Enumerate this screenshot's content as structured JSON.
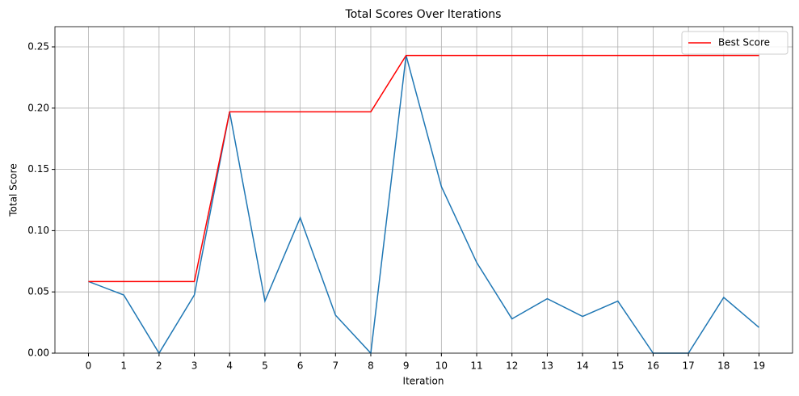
{
  "chart_data": {
    "type": "line",
    "title": "Total Scores Over Iterations",
    "x_label": "Iteration",
    "y_label": "Total Score",
    "x": [
      0,
      1,
      2,
      3,
      4,
      5,
      6,
      7,
      8,
      9,
      10,
      11,
      12,
      13,
      14,
      15,
      16,
      17,
      18,
      19
    ],
    "series": [
      {
        "color": "#1f77b4",
        "values": [
          0.0585,
          0.0475,
          0,
          0.0475,
          0.197,
          0.0425,
          0.1105,
          0.031,
          0,
          0.243,
          0.136,
          0.074,
          0.028,
          0.0445,
          0.03,
          0.0425,
          0,
          0,
          0.0455,
          0.021
        ]
      },
      {
        "name": "Best Score",
        "color": "#ff0000",
        "values": [
          0.0585,
          0.0585,
          0.0585,
          0.0585,
          0.197,
          0.197,
          0.197,
          0.197,
          0.197,
          0.243,
          0.243,
          0.243,
          0.243,
          0.243,
          0.243,
          0.243,
          0.243,
          0.243,
          0.243,
          0.243
        ]
      }
    ],
    "xlim": [
      -0.95,
      19.95
    ],
    "xticks": [
      0,
      1,
      2,
      3,
      4,
      5,
      6,
      7,
      8,
      9,
      10,
      11,
      12,
      13,
      14,
      15,
      16,
      17,
      18,
      19
    ],
    "ylim": [
      0,
      0.2665
    ],
    "yticks": [
      {
        "value": 0,
        "label": "0.00"
      },
      0.05,
      {
        "value": 0.1,
        "label": "0.10"
      },
      0.15,
      {
        "value": 0.2,
        "label": "0.20"
      },
      0.25
    ],
    "grid": true,
    "legend": "upper right"
  }
}
